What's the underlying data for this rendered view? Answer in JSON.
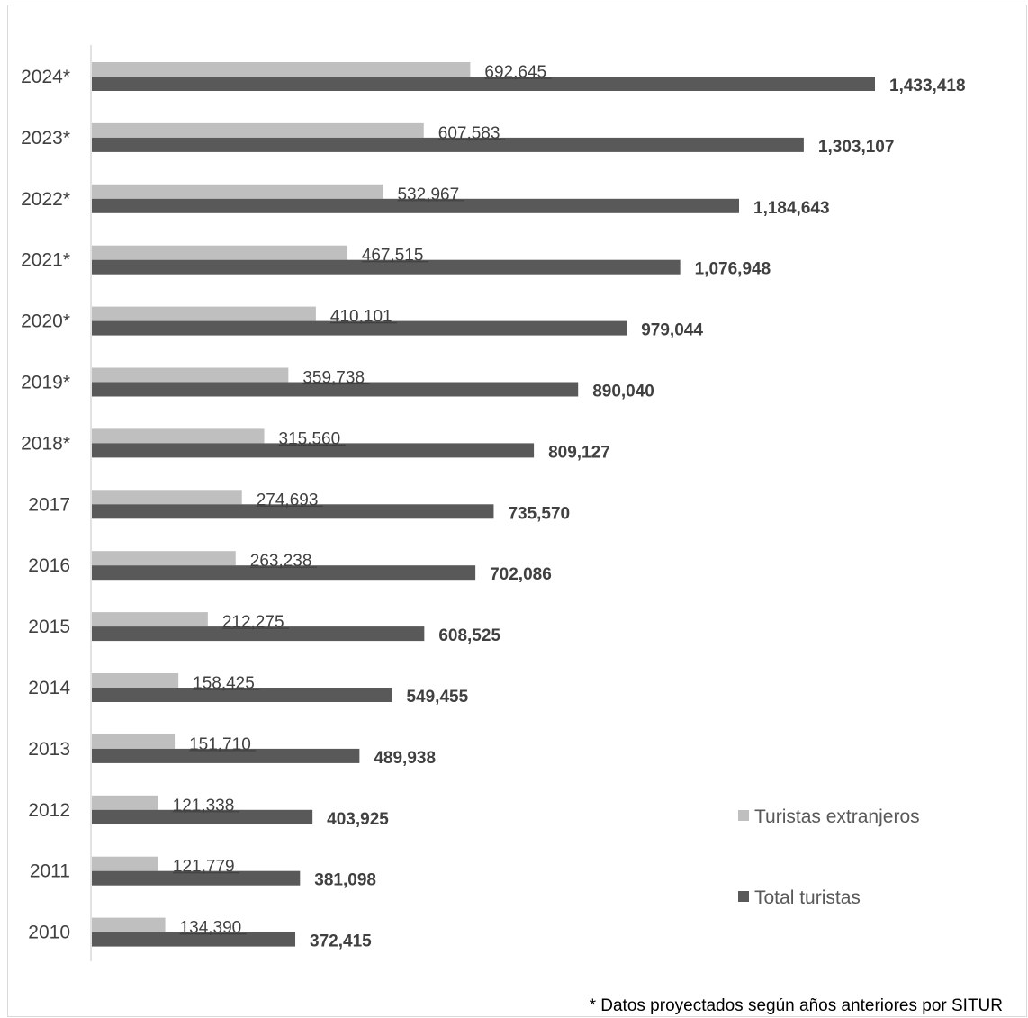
{
  "chart_data": {
    "type": "bar",
    "orientation": "horizontal",
    "categories": [
      "2010",
      "2011",
      "2012",
      "2013",
      "2014",
      "2015",
      "2016",
      "2017",
      "2018*",
      "2019*",
      "2020*",
      "2021*",
      "2022*",
      "2023*",
      "2024*"
    ],
    "series": [
      {
        "name": "Turistas extranjeros",
        "color": "#bfbfbf",
        "values": [
          134390,
          121779,
          121338,
          151710,
          158425,
          212275,
          263238,
          274693,
          315560,
          359738,
          410101,
          467515,
          532967,
          607583,
          692645
        ],
        "labels": [
          "134,390",
          "121,779",
          "121,338",
          "151,710",
          "158,425",
          "212,275",
          "263,238",
          "274,693",
          "315,560",
          "359,738",
          "410,101",
          "467,515",
          "532,967",
          "607,583",
          "692,645"
        ]
      },
      {
        "name": "Total turistas",
        "color": "#595959",
        "values": [
          372415,
          381098,
          403925,
          489938,
          549455,
          608525,
          702086,
          735570,
          809127,
          890040,
          979044,
          1076948,
          1184643,
          1303107,
          1433418
        ],
        "labels": [
          "372,415",
          "381,098",
          "403,925",
          "489,938",
          "549,455",
          "608,525",
          "702,086",
          "735,570",
          "809,127",
          "890,040",
          "979,044",
          "1,076,948",
          "1,184,643",
          "1,303,107",
          "1,433,418"
        ]
      }
    ],
    "xlim": [
      0,
      1600000
    ],
    "grid": false,
    "legend_position": "right",
    "footnote": "* Datos proyectados según años anteriores por SITUR"
  }
}
